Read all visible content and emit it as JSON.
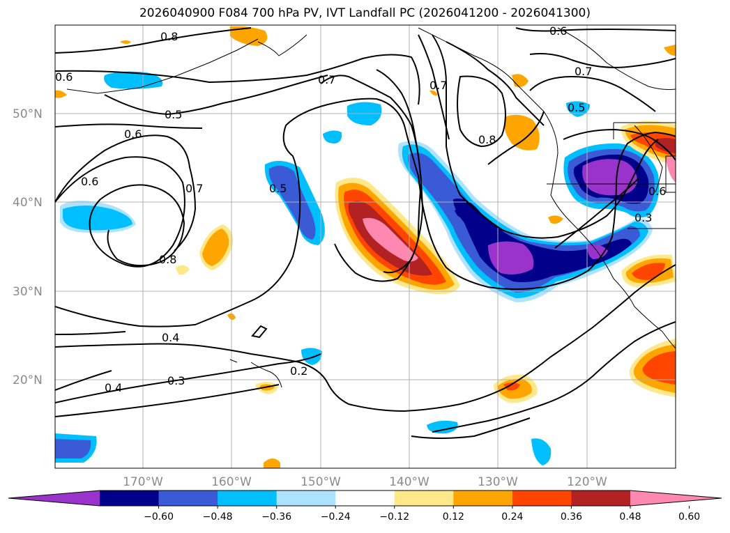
{
  "title": "2026040900 F084 700 hPa PV, IVT Landfall PC (2026041200 - 2026041300)",
  "lat_labels": [
    "50°N",
    "40°N",
    "30°N",
    "20°N"
  ],
  "lon_labels": [
    "170°W",
    "160°W",
    "150°W",
    "140°W",
    "130°W",
    "120°W"
  ],
  "colorbar": {
    "ticks": [
      "−0.60",
      "−0.48",
      "−0.36",
      "−0.24",
      "−0.12",
      "0.12",
      "0.24",
      "0.36",
      "0.48",
      "0.60"
    ],
    "colors": [
      "#9933cc",
      "#00008b",
      "#3b5bd6",
      "#00bfff",
      "#aee3ff",
      "#ffffff",
      "#ffe88a",
      "#ffa500",
      "#ff4500",
      "#b22222",
      "#ff88b0"
    ]
  },
  "contour_labels": [
    "0.8",
    "0.6",
    "0.7",
    "0.6",
    "0.5",
    "0.6",
    "0.7",
    "0.7",
    "0.5",
    "0.6",
    "0.5",
    "0.7",
    "0.8",
    "0.8",
    "0.3",
    "0.4",
    "0.4",
    "0.3",
    "0.2",
    "0.6"
  ]
}
